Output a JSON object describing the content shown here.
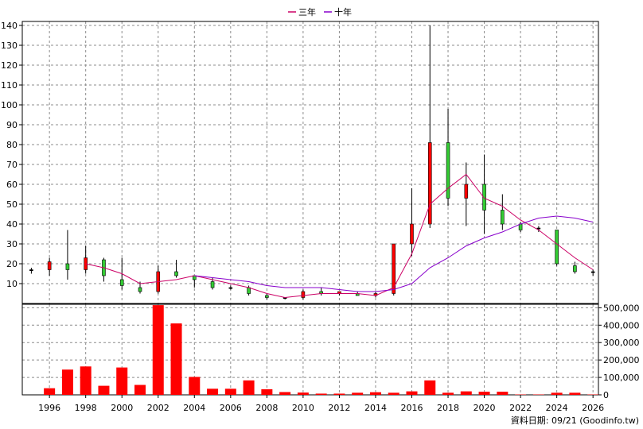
{
  "legend": [
    {
      "name": "三年",
      "color": "#cc0066"
    },
    {
      "name": "十年",
      "color": "#8800cc"
    }
  ],
  "footer_text": "資料日期: 09/21 (Goodinfo.tw)",
  "chart_data": [
    {
      "type": "candlestick",
      "title": "",
      "ylim": [
        0,
        142
      ],
      "yticks": [
        10,
        20,
        30,
        40,
        50,
        60,
        70,
        80,
        90,
        100,
        110,
        120,
        130,
        140
      ],
      "x_range": [
        1994.5,
        2026.3
      ],
      "xticks": [
        1996,
        1998,
        2000,
        2002,
        2004,
        2006,
        2008,
        2010,
        2012,
        2014,
        2016,
        2018,
        2020,
        2022,
        2024,
        2026
      ],
      "grid": true,
      "legend_position": "top",
      "up_color": "#ff0000",
      "down_color": "#33cc33",
      "candles": [
        {
          "year": 1995,
          "open": 17,
          "close": 17,
          "high": 18,
          "low": 15
        },
        {
          "year": 1996,
          "open": 17,
          "close": 21,
          "high": 23,
          "low": 14
        },
        {
          "year": 1997,
          "open": 20,
          "close": 17,
          "high": 37,
          "low": 12
        },
        {
          "year": 1998,
          "open": 17,
          "close": 23,
          "high": 29,
          "low": 15
        },
        {
          "year": 1999,
          "open": 22,
          "close": 14,
          "high": 23,
          "low": 11
        },
        {
          "year": 2000,
          "open": 12,
          "close": 9,
          "high": 23,
          "low": 7
        },
        {
          "year": 2001,
          "open": 8,
          "close": 6,
          "high": 11,
          "low": 5
        },
        {
          "year": 2002,
          "open": 6,
          "close": 16,
          "high": 19,
          "low": 5
        },
        {
          "year": 2003,
          "open": 16,
          "close": 14,
          "high": 22,
          "low": 13
        },
        {
          "year": 2004,
          "open": 14,
          "close": 12,
          "high": 14,
          "low": 8
        },
        {
          "year": 2005,
          "open": 11,
          "close": 8,
          "high": 13,
          "low": 7
        },
        {
          "year": 2006,
          "open": 8,
          "close": 8,
          "high": 9,
          "low": 7
        },
        {
          "year": 2007,
          "open": 8,
          "close": 5,
          "high": 9,
          "low": 4
        },
        {
          "year": 2008,
          "open": 4,
          "close": 3,
          "high": 5,
          "low": 2
        },
        {
          "year": 2009,
          "open": 3,
          "close": 3,
          "high": 3,
          "low": 2
        },
        {
          "year": 2010,
          "open": 3,
          "close": 6,
          "high": 7,
          "low": 2
        },
        {
          "year": 2011,
          "open": 6,
          "close": 5,
          "high": 8,
          "low": 4
        },
        {
          "year": 2012,
          "open": 5,
          "close": 6,
          "high": 6,
          "low": 4
        },
        {
          "year": 2013,
          "open": 5,
          "close": 4,
          "high": 6,
          "low": 4
        },
        {
          "year": 2014,
          "open": 4,
          "close": 5,
          "high": 6,
          "low": 3
        },
        {
          "year": 2015,
          "open": 5,
          "close": 30,
          "high": 30,
          "low": 4
        },
        {
          "year": 2016,
          "open": 30,
          "close": 40,
          "high": 58,
          "low": 24
        },
        {
          "year": 2017,
          "open": 40,
          "close": 81,
          "high": 140,
          "low": 38
        },
        {
          "year": 2018,
          "open": 81,
          "close": 53,
          "high": 98,
          "low": 49
        },
        {
          "year": 2019,
          "open": 53,
          "close": 60,
          "high": 71,
          "low": 39
        },
        {
          "year": 2020,
          "open": 60,
          "close": 47,
          "high": 75,
          "low": 35
        },
        {
          "year": 2021,
          "open": 47,
          "close": 40,
          "high": 55,
          "low": 37
        },
        {
          "year": 2022,
          "open": 40,
          "close": 37,
          "high": 41,
          "low": 36
        },
        {
          "year": 2023,
          "open": 38,
          "close": 38,
          "high": 39,
          "low": 36
        },
        {
          "year": 2024,
          "open": 37,
          "close": 20,
          "high": 37,
          "low": 19
        },
        {
          "year": 2025,
          "open": 19,
          "close": 16,
          "high": 21,
          "low": 15
        },
        {
          "year": 2026,
          "open": 16,
          "close": 16,
          "high": 17,
          "low": 14
        }
      ],
      "series": [
        {
          "name": "三年",
          "color": "#cc0066",
          "points": [
            [
              1998,
              20
            ],
            [
              1999,
              18
            ],
            [
              2000,
              15
            ],
            [
              2001,
              10
            ],
            [
              2002,
              11
            ],
            [
              2003,
              12
            ],
            [
              2004,
              14
            ],
            [
              2005,
              12
            ],
            [
              2006,
              10
            ],
            [
              2007,
              8
            ],
            [
              2008,
              5
            ],
            [
              2009,
              3
            ],
            [
              2010,
              4
            ],
            [
              2011,
              5
            ],
            [
              2012,
              5
            ],
            [
              2013,
              5
            ],
            [
              2014,
              4
            ],
            [
              2015,
              8
            ],
            [
              2016,
              25
            ],
            [
              2017,
              50
            ],
            [
              2018,
              58
            ],
            [
              2019,
              65
            ],
            [
              2020,
              53
            ],
            [
              2021,
              49
            ],
            [
              2022,
              42
            ],
            [
              2023,
              37
            ],
            [
              2024,
              30
            ],
            [
              2025,
              23
            ],
            [
              2026,
              17
            ]
          ]
        },
        {
          "name": "十年",
          "color": "#8800cc",
          "points": [
            [
              2004,
              14
            ],
            [
              2005,
              13
            ],
            [
              2006,
              12
            ],
            [
              2007,
              11
            ],
            [
              2008,
              9
            ],
            [
              2009,
              8
            ],
            [
              2010,
              8
            ],
            [
              2011,
              8
            ],
            [
              2012,
              7
            ],
            [
              2013,
              6
            ],
            [
              2014,
              6
            ],
            [
              2015,
              7
            ],
            [
              2016,
              10
            ],
            [
              2017,
              18
            ],
            [
              2018,
              23
            ],
            [
              2019,
              29
            ],
            [
              2020,
              33
            ],
            [
              2021,
              36
            ],
            [
              2022,
              40
            ],
            [
              2023,
              43
            ],
            [
              2024,
              44
            ],
            [
              2025,
              43
            ],
            [
              2026,
              41
            ]
          ]
        }
      ]
    },
    {
      "type": "bar",
      "title": "",
      "ylim": [
        0,
        520000
      ],
      "yticks": [
        0,
        100000,
        200000,
        300000,
        400000,
        500000
      ],
      "ytick_labels": [
        "0",
        "100,000",
        "200,000",
        "300,000",
        "400,000",
        "500,000"
      ],
      "color": "#ff0000",
      "grid": true,
      "categories": [
        1995,
        1996,
        1997,
        1998,
        1999,
        2000,
        2001,
        2002,
        2003,
        2004,
        2005,
        2006,
        2007,
        2008,
        2009,
        2010,
        2011,
        2012,
        2013,
        2014,
        2015,
        2016,
        2017,
        2018,
        2019,
        2020,
        2021,
        2022,
        2023,
        2024,
        2025,
        2026
      ],
      "values": [
        0,
        38000,
        145000,
        163000,
        52000,
        157000,
        57000,
        515000,
        410000,
        103000,
        35000,
        35000,
        83000,
        32000,
        16000,
        13000,
        7000,
        7000,
        12000,
        15000,
        12000,
        20000,
        83000,
        12000,
        20000,
        18000,
        18000,
        2000,
        2000,
        12000,
        12000,
        2000
      ]
    }
  ]
}
